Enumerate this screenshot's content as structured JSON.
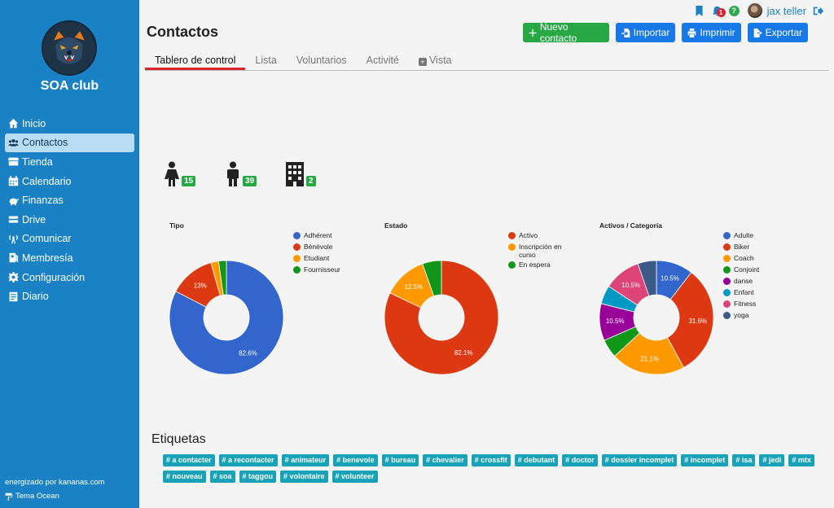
{
  "sidebar": {
    "club_name": "SOA club",
    "items": [
      {
        "label": "Inicio",
        "icon": "home-icon",
        "active": false
      },
      {
        "label": "Contactos",
        "icon": "users-icon",
        "active": true
      },
      {
        "label": "Tienda",
        "icon": "store-icon",
        "active": false
      },
      {
        "label": "Calendario",
        "icon": "calendar-icon",
        "active": false
      },
      {
        "label": "Finanzas",
        "icon": "piggy-bank-icon",
        "active": false
      },
      {
        "label": "Drive",
        "icon": "drive-icon",
        "active": false
      },
      {
        "label": "Comunicar",
        "icon": "broadcast-icon",
        "active": false
      },
      {
        "label": "Membresía",
        "icon": "id-card-icon",
        "active": false
      },
      {
        "label": "Configuración",
        "icon": "gear-icon",
        "active": false
      },
      {
        "label": "Diario",
        "icon": "journal-icon",
        "active": false
      }
    ],
    "powered_by": "energizado por kananas.com",
    "theme": "Tema Ocean"
  },
  "topbar": {
    "notifications_count": "1",
    "help": "?",
    "username": "jax teller"
  },
  "page": {
    "title": "Contactos"
  },
  "actions": {
    "new_contact": "Nuevo contacto",
    "import": "Importar",
    "print": "Imprimir",
    "export": "Exportar"
  },
  "tabs": [
    {
      "label": "Tablero de control",
      "active": true
    },
    {
      "label": "Lista",
      "active": false
    },
    {
      "label": "Voluntarios",
      "active": false
    },
    {
      "label": "Activité",
      "active": false
    },
    {
      "label": "Vista",
      "active": false
    }
  ],
  "counters": {
    "female": "15",
    "male": "39",
    "organization": "2"
  },
  "chart_data": [
    {
      "type": "pie",
      "title": "Tipo",
      "legend": "right",
      "slices": [
        {
          "label": "Adhérent",
          "value": 82.6,
          "color": "#3366cc",
          "show_label": "82.6%"
        },
        {
          "label": "Bénévole",
          "value": 13.0,
          "color": "#dc3912",
          "show_label": "13%"
        },
        {
          "label": "Etudiant",
          "value": 2.2,
          "color": "#ff9900",
          "show_label": ""
        },
        {
          "label": "Fournisseur",
          "value": 2.2,
          "color": "#109618",
          "show_label": ""
        }
      ]
    },
    {
      "type": "pie",
      "title": "Estado",
      "legend": "right",
      "slices": [
        {
          "label": "Activo",
          "value": 82.1,
          "color": "#dc3912",
          "show_label": "82.1%"
        },
        {
          "label": "Inscripción en curso",
          "value": 12.5,
          "color": "#ff9900",
          "show_label": "12.5%"
        },
        {
          "label": "En espera",
          "value": 5.4,
          "color": "#109618",
          "show_label": ""
        }
      ]
    },
    {
      "type": "pie",
      "title": "Activos / Categoría",
      "legend": "right",
      "slices": [
        {
          "label": "Adulte",
          "value": 10.5,
          "color": "#3366cc",
          "show_label": "10.5%"
        },
        {
          "label": "Biker",
          "value": 31.6,
          "color": "#dc3912",
          "show_label": "31.6%"
        },
        {
          "label": "Coach",
          "value": 21.1,
          "color": "#ff9900",
          "show_label": "21.1%"
        },
        {
          "label": "Conjoint",
          "value": 5.3,
          "color": "#109618",
          "show_label": ""
        },
        {
          "label": "danse",
          "value": 10.5,
          "color": "#990099",
          "show_label": "10.5%"
        },
        {
          "label": "Enfant",
          "value": 5.3,
          "color": "#0099c6",
          "show_label": ""
        },
        {
          "label": "Fitness",
          "value": 10.5,
          "color": "#dd4477",
          "show_label": "10.5%"
        },
        {
          "label": "yoga",
          "value": 5.3,
          "color": "#3b5b86",
          "show_label": ""
        }
      ]
    }
  ],
  "tags": {
    "title": "Etiquetas",
    "items": [
      "# a contacter",
      "# a recontacter",
      "# animateur",
      "# benevole",
      "# bureau",
      "# chevalier",
      "# crossfit",
      "# debutant",
      "# doctor",
      "# dossier incomplet",
      "# incomplet",
      "# isa",
      "# jedi",
      "# mtx",
      "# nouveau",
      "# soa",
      "# taggou",
      "# volontaire",
      "# volunteer"
    ]
  }
}
